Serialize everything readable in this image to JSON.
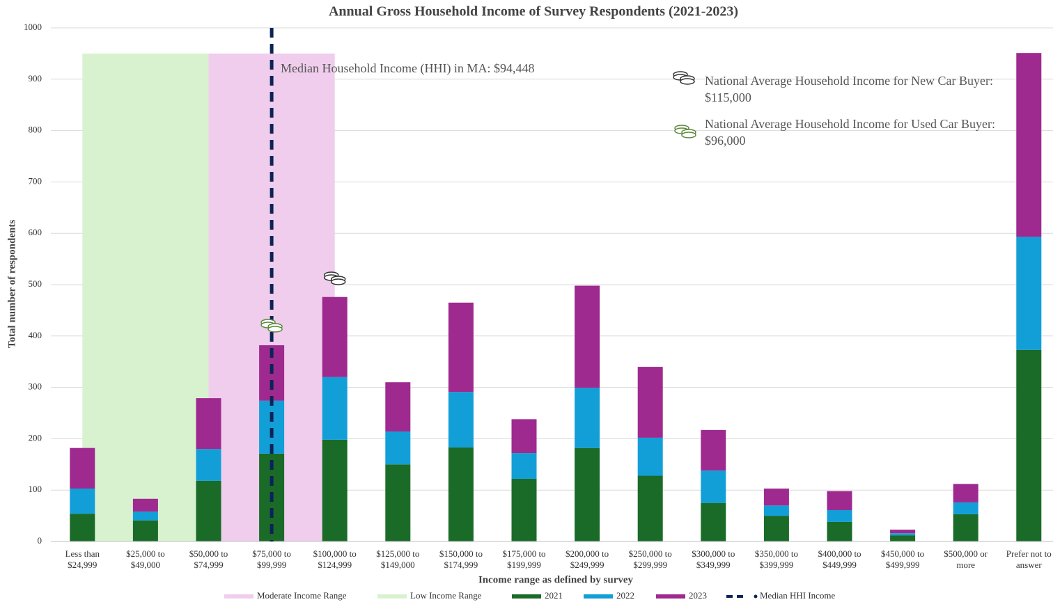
{
  "chart_data": {
    "type": "stacked_bar",
    "title": "Annual Gross Household Income of Survey Respondents (2021-2023)",
    "x_label": "Income range as defined by survey",
    "y_label": "Total number of respondents",
    "categories": [
      "Less than $24,999",
      "$25,000 to $49,000",
      "$50,000 to $74,999",
      "$75,000 to $99,999",
      "$100,000 to $124,999",
      "$125,000 to $149,000",
      "$150,000 to $174,999",
      "$175,000 to $199,999",
      "$200,000 to $249,999",
      "$250,000 to $299,999",
      "$300,000 to $349,999",
      "$350,000 to $399,999",
      "$400,000 to $449,999",
      "$450,000 to $499,999",
      "$500,000 or more",
      "Prefer not to answer"
    ],
    "series": [
      {
        "name": "2021",
        "color": "#1a6b28",
        "values": [
          54,
          41,
          118,
          171,
          198,
          150,
          183,
          122,
          182,
          128,
          75,
          50,
          38,
          12,
          53,
          373
        ]
      },
      {
        "name": "2022",
        "color": "#129fd8",
        "values": [
          49,
          17,
          62,
          103,
          122,
          64,
          108,
          50,
          117,
          74,
          63,
          20,
          23,
          4,
          23,
          220
        ]
      },
      {
        "name": "2023",
        "color": "#9e2a8f",
        "values": [
          79,
          25,
          99,
          108,
          156,
          96,
          174,
          66,
          199,
          138,
          79,
          33,
          37,
          7,
          36,
          358
        ]
      }
    ],
    "ranges": [
      {
        "name": "Moderate Income Range",
        "color": "#f0cdec",
        "from": 2,
        "to": 4,
        "top": 950
      },
      {
        "name": "Low Income Range",
        "color": "#d8f2cf",
        "from": 0,
        "to": 2,
        "top": 950
      }
    ],
    "median": {
      "name": "Median HHI Income",
      "color": "#0c2356",
      "position": 3
    },
    "annotations": [
      "Median Household Income (HHI) in MA: $94,448",
      "National Average Household Income for New Car Buyer: $115,000",
      "National Average Household Income for Used Car Buyer: $96,000"
    ],
    "ylim": [
      0,
      1000
    ],
    "yticks": [
      0,
      100,
      200,
      300,
      400,
      500,
      600,
      700,
      800,
      900,
      1000
    ],
    "grid": true
  }
}
